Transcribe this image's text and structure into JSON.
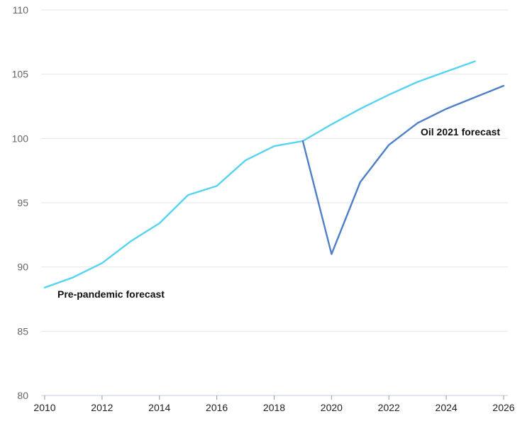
{
  "chart_data": {
    "type": "line",
    "title": "",
    "xlabel": "",
    "ylabel": "",
    "ylim": [
      80,
      110
    ],
    "xlim": [
      2010,
      2026
    ],
    "yticks": [
      80,
      85,
      90,
      95,
      100,
      105,
      110
    ],
    "xticks": [
      2010,
      2012,
      2014,
      2016,
      2018,
      2020,
      2022,
      2024,
      2026
    ],
    "grid": true,
    "series": [
      {
        "name": "Pre-pandemic forecast",
        "color": "#56d3f2",
        "x": [
          2010,
          2011,
          2012,
          2013,
          2014,
          2015,
          2016,
          2017,
          2018,
          2019,
          2020,
          2021,
          2022,
          2023,
          2024,
          2025
        ],
        "y": [
          88.4,
          89.2,
          90.3,
          92.0,
          93.4,
          95.6,
          96.3,
          98.3,
          99.4,
          99.8,
          101.1,
          102.3,
          103.4,
          104.4,
          105.2,
          106.0
        ]
      },
      {
        "name": "Oil 2021 forecast",
        "color": "#4f7fc9",
        "x": [
          2019,
          2020,
          2021,
          2022,
          2023,
          2024,
          2025,
          2026
        ],
        "y": [
          99.8,
          91.0,
          96.6,
          99.5,
          101.2,
          102.3,
          103.2,
          104.1
        ]
      }
    ],
    "annotations": [
      {
        "text": "Pre-pandemic forecast",
        "series": 0
      },
      {
        "text": "Oil 2021 forecast",
        "series": 1
      }
    ]
  }
}
